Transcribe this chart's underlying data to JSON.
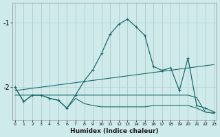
{
  "xlabel": "Humidex (Indice chaleur)",
  "bg_color": "#ceeaea",
  "line_color": "#1a6b6b",
  "grid_color": "#aed4d4",
  "x_ticks": [
    0,
    1,
    2,
    3,
    4,
    5,
    6,
    7,
    8,
    9,
    10,
    11,
    12,
    13,
    14,
    15,
    16,
    17,
    18,
    19,
    20,
    21,
    22,
    23
  ],
  "y_ticks": [
    -1,
    -2
  ],
  "xlim": [
    -0.3,
    23.3
  ],
  "ylim": [
    -2.5,
    -0.7
  ],
  "line1_x": [
    0,
    1,
    2,
    3,
    4,
    5,
    6,
    7,
    8,
    9,
    10,
    11,
    12,
    13,
    14,
    15,
    16,
    17,
    18,
    19,
    20,
    21,
    22,
    23
  ],
  "line1_y": [
    -2.0,
    -2.22,
    -2.12,
    -2.12,
    -2.17,
    -2.2,
    -2.32,
    -2.12,
    -1.9,
    -1.73,
    -1.48,
    -1.18,
    -1.03,
    -0.95,
    -1.07,
    -1.2,
    -1.68,
    -1.74,
    -1.7,
    -2.05,
    -1.55,
    -2.28,
    -2.32,
    -2.38
  ],
  "line2_x": [
    0,
    23
  ],
  "line2_y": [
    -2.05,
    -1.65
  ],
  "line3_x": [
    0,
    19,
    20,
    21,
    22,
    23
  ],
  "line3_y": [
    -2.12,
    -2.12,
    -2.12,
    -2.16,
    -2.38,
    -2.4
  ],
  "line4_x": [
    0,
    1,
    2,
    3,
    4,
    5,
    6,
    7,
    8,
    9,
    10,
    11,
    12,
    13,
    14,
    15,
    16,
    17,
    18,
    19,
    20,
    21,
    22,
    23
  ],
  "line4_y": [
    -2.0,
    -2.22,
    -2.12,
    -2.12,
    -2.17,
    -2.2,
    -2.32,
    -2.17,
    -2.25,
    -2.28,
    -2.3,
    -2.3,
    -2.3,
    -2.3,
    -2.3,
    -2.3,
    -2.28,
    -2.28,
    -2.28,
    -2.28,
    -2.28,
    -2.32,
    -2.38,
    -2.4
  ]
}
